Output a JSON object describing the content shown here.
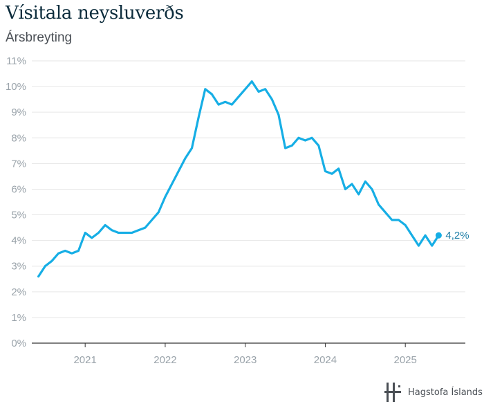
{
  "title": "Vísitala neysluverðs",
  "subtitle": "Ársbreyting",
  "brand": {
    "name": "Hagstofa Íslands",
    "logo_icon": "hagstofa-logo-icon"
  },
  "colors": {
    "line": "#16aee5",
    "grid": "#e6e6e6",
    "axis": "#333333",
    "tick_text": "#9aa3aa",
    "end_label": "#1f7fa8"
  },
  "chart_data": {
    "type": "line",
    "title": "Vísitala neysluverðs",
    "subtitle": "Ársbreyting",
    "xlabel": "",
    "ylabel": "",
    "x_ticks": [
      "2021",
      "2022",
      "2023",
      "2024",
      "2025"
    ],
    "y_ticks": [
      "0%",
      "1%",
      "2%",
      "3%",
      "4%",
      "5%",
      "6%",
      "7%",
      "8%",
      "9%",
      "10%",
      "11%"
    ],
    "ylim": [
      0,
      11
    ],
    "xlim": [
      "2020-05",
      "2025-10"
    ],
    "grid": "horizontal",
    "end_label": "4,2%",
    "series": [
      {
        "x": [
          "2020-06",
          "2020-07",
          "2020-08",
          "2020-09",
          "2020-10",
          "2020-11",
          "2020-12",
          "2021-01",
          "2021-02",
          "2021-03",
          "2021-04",
          "2021-05",
          "2021-06",
          "2021-07",
          "2021-08",
          "2021-09",
          "2021-10",
          "2021-11",
          "2021-12",
          "2022-01",
          "2022-02",
          "2022-03",
          "2022-04",
          "2022-05",
          "2022-06",
          "2022-07",
          "2022-08",
          "2022-09",
          "2022-10",
          "2022-11",
          "2022-12",
          "2023-01",
          "2023-02",
          "2023-03",
          "2023-04",
          "2023-05",
          "2023-06",
          "2023-07",
          "2023-08",
          "2023-09",
          "2023-10",
          "2023-11",
          "2023-12",
          "2024-01",
          "2024-02",
          "2024-03",
          "2024-04",
          "2024-05",
          "2024-06",
          "2024-07",
          "2024-08",
          "2024-09",
          "2024-10",
          "2024-11",
          "2024-12",
          "2025-01",
          "2025-02",
          "2025-03",
          "2025-04",
          "2025-05",
          "2025-06"
        ],
        "values": [
          2.6,
          3.0,
          3.2,
          3.5,
          3.6,
          3.5,
          3.6,
          4.3,
          4.1,
          4.3,
          4.6,
          4.4,
          4.3,
          4.3,
          4.3,
          4.4,
          4.5,
          4.8,
          5.1,
          5.7,
          6.2,
          6.7,
          7.2,
          7.6,
          8.8,
          9.9,
          9.7,
          9.3,
          9.4,
          9.3,
          9.6,
          9.9,
          10.2,
          9.8,
          9.9,
          9.5,
          8.9,
          7.6,
          7.7,
          8.0,
          7.9,
          8.0,
          7.7,
          6.7,
          6.6,
          6.8,
          6.0,
          6.2,
          5.8,
          6.3,
          6.0,
          5.4,
          5.1,
          4.8,
          4.8,
          4.6,
          4.2,
          3.8,
          4.2,
          3.8,
          4.2
        ]
      }
    ]
  }
}
